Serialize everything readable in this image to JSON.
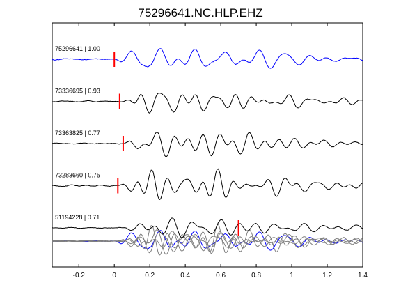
{
  "chart_data": {
    "type": "line",
    "title": "75296641.NC.HLP.EHZ",
    "xlabel": "",
    "ylabel": "",
    "xlim": [
      -0.35,
      1.4
    ],
    "xticks": [
      -0.2,
      0,
      0.2,
      0.4,
      0.6,
      0.8,
      1,
      1.2,
      1.4
    ],
    "xtick_labels": [
      "-0.2",
      "0",
      "0.2",
      "0.4",
      "0.6",
      "0.8",
      "1",
      "1.2",
      "1.4"
    ],
    "grid": false,
    "legend": "none",
    "colors": {
      "reference": "#0000ff",
      "trace": "#000000",
      "overlay": "#7f7f7f",
      "pick": "#ff0000"
    },
    "series": [
      {
        "label": "75296641 | 1.00",
        "event_id": "75296641",
        "correlation": 1.0,
        "pick_time": 0.0,
        "color": "#0000ff",
        "seed": 11
      },
      {
        "label": "73336695 | 0.93",
        "event_id": "73336695",
        "correlation": 0.93,
        "pick_time": 0.03,
        "color": "#000000",
        "seed": 23
      },
      {
        "label": "73363825 | 0.77",
        "event_id": "73363825",
        "correlation": 0.77,
        "pick_time": 0.05,
        "color": "#000000",
        "seed": 37
      },
      {
        "label": "73283660 | 0.75",
        "event_id": "73283660",
        "correlation": 0.75,
        "pick_time": 0.02,
        "color": "#000000",
        "seed": 41
      },
      {
        "label": "51194228 | 0.71",
        "event_id": "51194228",
        "correlation": 0.71,
        "pick_time": 0.7,
        "color": "#000000",
        "seed": 53
      }
    ]
  }
}
